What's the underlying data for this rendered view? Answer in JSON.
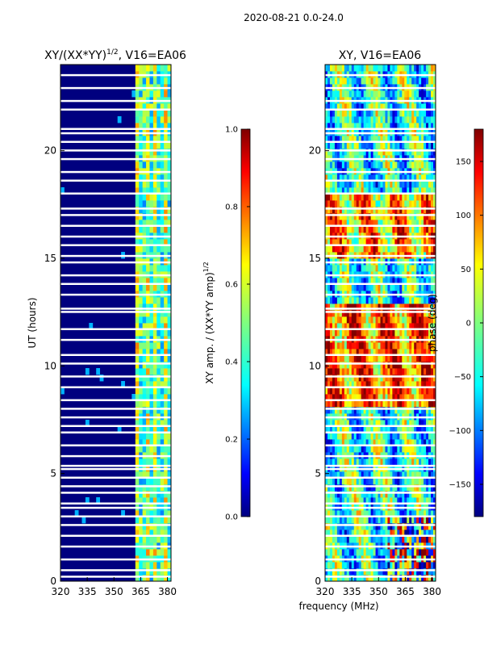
{
  "figure": {
    "suptitle": "2020-08-21 0.0-24.0",
    "xlabel": "frequency (MHz)"
  },
  "colors": {
    "background": "#00007f",
    "gap": "#ffffff",
    "jet": [
      "#00007f",
      "#0000ff",
      "#007fff",
      "#00ffff",
      "#7fff7f",
      "#ffff00",
      "#ff7f00",
      "#ff0000",
      "#7f0000"
    ]
  },
  "chart_data": [
    {
      "type": "heatmap",
      "title": "XY/(XX*YY)",
      "title_exponent": "1/2",
      "title_suffix": ", V16=EA06",
      "xlabel": "",
      "ylabel": "UT (hours)",
      "xlim": [
        320,
        382
      ],
      "ylim": [
        0,
        24
      ],
      "xticks": [
        "320",
        "335",
        "350",
        "365",
        "380"
      ],
      "yticks": [
        "0",
        "5",
        "10",
        "15",
        "20"
      ],
      "colorbar": {
        "label_text": "XY amp. / (XX*YY amp)",
        "label_exponent": "1/2",
        "range": [
          0.0,
          1.0
        ],
        "ticks": [
          "0.0",
          "0.2",
          "0.4",
          "0.6",
          "0.8",
          "1.0"
        ]
      }
    },
    {
      "type": "heatmap",
      "title": "XY, V16=EA06",
      "ylabel": "",
      "xlim": [
        320,
        382
      ],
      "ylim": [
        0,
        24
      ],
      "xticks": [
        "320",
        "335",
        "350",
        "365",
        "380"
      ],
      "yticks": [
        "0",
        "5",
        "10",
        "15",
        "20"
      ],
      "colorbar": {
        "label_text": "phase (deg)",
        "range": [
          -180,
          180
        ],
        "ticks": [
          "150",
          "100",
          "50",
          "0",
          "−50",
          "−100",
          "−150"
        ]
      }
    }
  ]
}
